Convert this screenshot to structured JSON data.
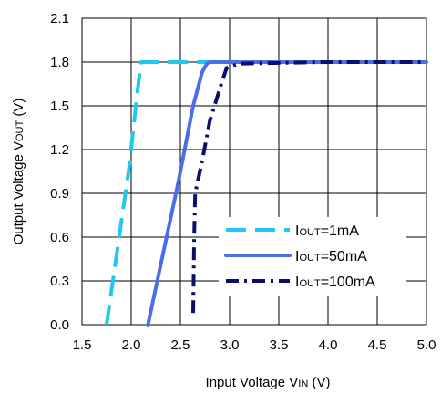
{
  "chart_data": {
    "type": "line",
    "xlabel": {
      "pre": "Input Voltage V",
      "sub": "IN",
      "post": " (V)"
    },
    "ylabel": {
      "pre": "Output Voltage V",
      "sub": "OUT",
      "post": " (V)"
    },
    "xlim": [
      1.5,
      5.0
    ],
    "ylim": [
      0.0,
      2.1
    ],
    "xticks": [
      "1.5",
      "2.0",
      "2.5",
      "3.0",
      "3.5",
      "4.0",
      "4.5",
      "5.0"
    ],
    "yticks": [
      "0.0",
      "0.3",
      "0.6",
      "0.9",
      "1.2",
      "1.5",
      "1.8",
      "2.1"
    ],
    "grid": true,
    "legend_position": "lower-right",
    "series": [
      {
        "name": "IOUT=1mA",
        "label": {
          "pre": "I",
          "sub": "OUT",
          "post": "=1mA"
        },
        "color": "#1ec8ee",
        "style": "long-dash",
        "x": [
          1.75,
          1.98,
          2.06,
          2.1,
          2.25,
          3.0,
          4.0,
          5.0
        ],
        "y": [
          0.0,
          1.08,
          1.58,
          1.8,
          1.8,
          1.8,
          1.8,
          1.8
        ]
      },
      {
        "name": "IOUT=50mA",
        "label": {
          "pre": "I",
          "sub": "OUT",
          "post": "=50mA"
        },
        "color": "#4a6ee8",
        "style": "solid",
        "x": [
          2.17,
          2.48,
          2.63,
          2.72,
          2.77,
          2.8,
          3.0,
          4.0,
          5.0
        ],
        "y": [
          0.0,
          0.98,
          1.5,
          1.73,
          1.79,
          1.8,
          1.8,
          1.8,
          1.8
        ]
      },
      {
        "name": "IOUT=100mA",
        "label": {
          "pre": "I",
          "sub": "OUT",
          "post": "=100mA"
        },
        "color": "#0c0f6a",
        "style": "dash-dot",
        "x": [
          2.63,
          2.64,
          2.65,
          2.72,
          2.8,
          2.93,
          2.97,
          3.1,
          4.0,
          5.0
        ],
        "y": [
          0.08,
          0.6,
          0.9,
          1.12,
          1.4,
          1.68,
          1.76,
          1.79,
          1.8,
          1.8
        ]
      }
    ]
  }
}
